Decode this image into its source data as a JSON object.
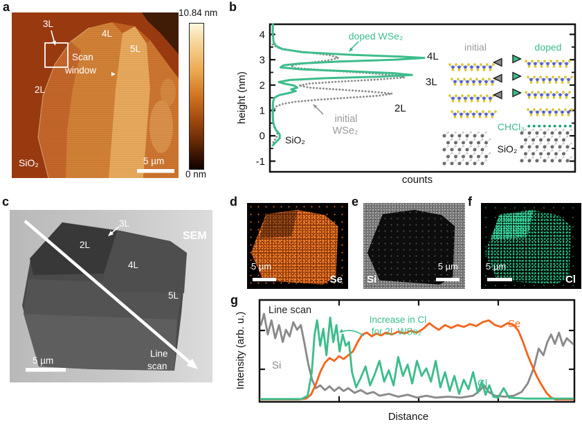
{
  "colors": {
    "teal": "#3dbd8c",
    "orange": "#f4661f",
    "gray": "#8a8a8a",
    "atom_yellow": "#ddc92f",
    "atom_blue": "#5663cf"
  },
  "panel_a": {
    "label": "a",
    "color_max": "10.84 nm",
    "color_min": "0 nm",
    "l3": "3L",
    "l4": "4L",
    "l5": "5L",
    "l2": "2L",
    "scan_line1": "Scan",
    "scan_line2": "window",
    "substrate": "SiO₂",
    "scalebar": "5 µm"
  },
  "panel_b": {
    "label": "b",
    "ylabel": "height (nm)",
    "xlabel": "counts",
    "doped_label": "doped WSe₂",
    "initial_label1": "initial",
    "initial_label2": "WSe₂",
    "peak4": "4L",
    "peak3": "3L",
    "peak2": "2L",
    "sio2": "SiO₂",
    "inset": {
      "initial": "initial",
      "doped": "doped",
      "chcl3": "CHCl₃",
      "sio2": "SiO₂"
    }
  },
  "panel_c": {
    "label": "c",
    "technique": "SEM",
    "l3": "3L",
    "l2": "2L",
    "l4": "4L",
    "l5": "5L",
    "line1": "Line",
    "line2": "scan",
    "scalebar": "5 µm"
  },
  "panel_d": {
    "label": "d",
    "scalebar": "5 µm",
    "element": "Se"
  },
  "panel_e": {
    "label": "e",
    "element": "Si",
    "scalebar": "5 µm"
  },
  "panel_f": {
    "label": "f",
    "scalebar": "5 µm",
    "element": "Cl"
  },
  "panel_g": {
    "label": "g",
    "title": "Line scan",
    "ylabel": "Intensity (arb. u.)",
    "xlabel": "Distance",
    "annotation1": "Increase in Cl",
    "annotation2": "for 2L WSe₂",
    "si": "Si",
    "se": "Se",
    "cl": "Cl"
  },
  "chart_data": [
    {
      "id": "height_histogram",
      "type": "line",
      "xlabel": "counts",
      "ylabel": "height (nm)",
      "x_axis_note": "counts axis unlabeled, values normalized 0-1",
      "ylim": [
        -1.45,
        4.4
      ],
      "yticks_major": [
        4,
        3,
        2,
        1,
        0,
        -1
      ],
      "yticks_minor": [
        3.5,
        2.5,
        1.5,
        0.5,
        -0.5
      ],
      "peak_annotations": [
        {
          "label": "4L",
          "height_nm": 3.1
        },
        {
          "label": "3L",
          "height_nm": 2.4
        },
        {
          "label": "2L",
          "height_nm": 1.6
        },
        {
          "label": "SiO₂",
          "height_nm": 0.0
        }
      ],
      "series": [
        {
          "name": "initial WSe₂",
          "color": "#8a8a8a",
          "style": "dotted",
          "points_height_counts": [
            [
              3.6,
              0.01
            ],
            [
              3.48,
              0.04
            ],
            [
              3.38,
              0.12
            ],
            [
              3.28,
              0.25
            ],
            [
              3.18,
              0.38
            ],
            [
              3.08,
              0.44
            ],
            [
              2.98,
              0.38
            ],
            [
              2.88,
              0.25
            ],
            [
              2.78,
              0.13
            ],
            [
              2.68,
              0.15
            ],
            [
              2.58,
              0.35
            ],
            [
              2.48,
              0.62
            ],
            [
              2.38,
              0.82
            ],
            [
              2.3,
              0.87
            ],
            [
              2.22,
              0.7
            ],
            [
              2.14,
              0.45
            ],
            [
              2.06,
              0.25
            ],
            [
              1.98,
              0.18
            ],
            [
              1.9,
              0.25
            ],
            [
              1.82,
              0.45
            ],
            [
              1.74,
              0.65
            ],
            [
              1.66,
              0.79
            ],
            [
              1.58,
              0.7
            ],
            [
              1.5,
              0.5
            ],
            [
              1.42,
              0.3
            ],
            [
              1.34,
              0.15
            ],
            [
              1.25,
              0.07
            ],
            [
              1.15,
              0.03
            ],
            [
              1.0,
              0.015
            ],
            [
              0.8,
              0.01
            ],
            [
              0.6,
              0.012
            ],
            [
              0.4,
              0.018
            ],
            [
              0.25,
              0.03
            ],
            [
              0.1,
              0.04
            ],
            [
              -0.05,
              0.035
            ],
            [
              -0.2,
              0.018
            ],
            [
              -0.35,
              0.006
            ]
          ]
        },
        {
          "name": "doped WSe₂",
          "color": "#3dbd8c",
          "style": "solid",
          "points_height_counts": [
            [
              4.4,
              0.01
            ],
            [
              4.0,
              0.01
            ],
            [
              3.7,
              0.015
            ],
            [
              3.55,
              0.03
            ],
            [
              3.42,
              0.07
            ],
            [
              3.3,
              0.2
            ],
            [
              3.2,
              0.5
            ],
            [
              3.12,
              0.85
            ],
            [
              3.07,
              1.0
            ],
            [
              3.0,
              0.8
            ],
            [
              2.93,
              0.45
            ],
            [
              2.85,
              0.18
            ],
            [
              2.78,
              0.08
            ],
            [
              2.7,
              0.06
            ],
            [
              2.62,
              0.2
            ],
            [
              2.55,
              0.5
            ],
            [
              2.47,
              0.8
            ],
            [
              2.4,
              0.92
            ],
            [
              2.33,
              0.7
            ],
            [
              2.27,
              0.35
            ],
            [
              2.2,
              0.12
            ],
            [
              2.12,
              0.05
            ],
            [
              2.05,
              0.09
            ],
            [
              1.98,
              0.15
            ],
            [
              1.9,
              0.17
            ],
            [
              1.83,
              0.13
            ],
            [
              1.76,
              0.16
            ],
            [
              1.68,
              0.11
            ],
            [
              1.6,
              0.05
            ],
            [
              1.5,
              0.02
            ],
            [
              1.35,
              0.012
            ],
            [
              1.1,
              0.01
            ],
            [
              0.8,
              0.01
            ],
            [
              0.55,
              0.012
            ],
            [
              0.35,
              0.02
            ],
            [
              0.2,
              0.035
            ],
            [
              0.05,
              0.055
            ],
            [
              -0.1,
              0.055
            ],
            [
              -0.25,
              0.03
            ],
            [
              -0.38,
              0.01
            ]
          ]
        }
      ]
    },
    {
      "id": "eds_line_scan",
      "type": "line",
      "title": "Line scan",
      "xlabel": "Distance",
      "ylabel": "Intensity (arb. u.)",
      "axis_note": "both axes unlabeled numerically, values normalized 0-1",
      "annotation": "Increase in Cl for 2L WSe₂",
      "series": [
        {
          "name": "Si",
          "color": "#8a8a8a",
          "points_xy": [
            [
              0.0,
              0.8
            ],
            [
              0.01,
              0.92
            ],
            [
              0.022,
              0.7
            ],
            [
              0.034,
              0.85
            ],
            [
              0.046,
              0.66
            ],
            [
              0.058,
              0.8
            ],
            [
              0.07,
              0.62
            ],
            [
              0.08,
              0.75
            ],
            [
              0.092,
              0.68
            ],
            [
              0.104,
              0.83
            ],
            [
              0.116,
              0.75
            ],
            [
              0.128,
              0.8
            ],
            [
              0.14,
              0.6
            ],
            [
              0.152,
              0.38
            ],
            [
              0.164,
              0.22
            ],
            [
              0.176,
              0.13
            ],
            [
              0.19,
              0.16
            ],
            [
              0.205,
              0.11
            ],
            [
              0.22,
              0.15
            ],
            [
              0.235,
              0.1
            ],
            [
              0.25,
              0.14
            ],
            [
              0.265,
              0.1
            ],
            [
              0.28,
              0.13
            ],
            [
              0.3,
              0.08
            ],
            [
              0.32,
              0.11
            ],
            [
              0.34,
              0.07
            ],
            [
              0.36,
              0.09
            ],
            [
              0.38,
              0.05
            ],
            [
              0.41,
              0.07
            ],
            [
              0.44,
              0.04
            ],
            [
              0.47,
              0.06
            ],
            [
              0.5,
              0.03
            ],
            [
              0.53,
              0.05
            ],
            [
              0.56,
              0.03
            ],
            [
              0.6,
              0.04
            ],
            [
              0.64,
              0.03
            ],
            [
              0.68,
              0.05
            ],
            [
              0.7,
              0.1
            ],
            [
              0.715,
              0.16
            ],
            [
              0.73,
              0.09
            ],
            [
              0.75,
              0.05
            ],
            [
              0.78,
              0.04
            ],
            [
              0.81,
              0.05
            ],
            [
              0.835,
              0.09
            ],
            [
              0.855,
              0.18
            ],
            [
              0.875,
              0.35
            ],
            [
              0.89,
              0.55
            ],
            [
              0.905,
              0.48
            ],
            [
              0.918,
              0.62
            ],
            [
              0.93,
              0.7
            ],
            [
              0.942,
              0.6
            ],
            [
              0.955,
              0.72
            ],
            [
              0.968,
              0.58
            ],
            [
              0.98,
              0.66
            ],
            [
              1.0,
              0.6
            ]
          ]
        },
        {
          "name": "Se",
          "color": "#f4661f",
          "points_xy": [
            [
              0.0,
              0.01
            ],
            [
              0.12,
              0.01
            ],
            [
              0.145,
              0.02
            ],
            [
              0.16,
              0.06
            ],
            [
              0.175,
              0.16
            ],
            [
              0.19,
              0.3
            ],
            [
              0.205,
              0.4
            ],
            [
              0.22,
              0.45
            ],
            [
              0.235,
              0.42
            ],
            [
              0.25,
              0.47
            ],
            [
              0.265,
              0.44
            ],
            [
              0.28,
              0.48
            ],
            [
              0.295,
              0.52
            ],
            [
              0.31,
              0.62
            ],
            [
              0.325,
              0.7
            ],
            [
              0.34,
              0.72
            ],
            [
              0.355,
              0.68
            ],
            [
              0.37,
              0.71
            ],
            [
              0.385,
              0.69
            ],
            [
              0.4,
              0.72
            ],
            [
              0.42,
              0.7
            ],
            [
              0.44,
              0.73
            ],
            [
              0.46,
              0.71
            ],
            [
              0.48,
              0.74
            ],
            [
              0.5,
              0.72
            ],
            [
              0.52,
              0.76
            ],
            [
              0.54,
              0.82
            ],
            [
              0.555,
              0.78
            ],
            [
              0.57,
              0.75
            ],
            [
              0.59,
              0.8
            ],
            [
              0.61,
              0.77
            ],
            [
              0.63,
              0.8
            ],
            [
              0.65,
              0.78
            ],
            [
              0.67,
              0.81
            ],
            [
              0.69,
              0.79
            ],
            [
              0.71,
              0.83
            ],
            [
              0.73,
              0.85
            ],
            [
              0.75,
              0.8
            ],
            [
              0.77,
              0.78
            ],
            [
              0.79,
              0.82
            ],
            [
              0.81,
              0.8
            ],
            [
              0.825,
              0.74
            ],
            [
              0.84,
              0.62
            ],
            [
              0.855,
              0.48
            ],
            [
              0.87,
              0.36
            ],
            [
              0.885,
              0.25
            ],
            [
              0.9,
              0.16
            ],
            [
              0.915,
              0.08
            ],
            [
              0.93,
              0.03
            ],
            [
              0.945,
              0.01
            ],
            [
              1.0,
              0.01
            ]
          ]
        },
        {
          "name": "Cl",
          "color": "#3dbd8c",
          "points_xy": [
            [
              0.0,
              0.015
            ],
            [
              0.13,
              0.015
            ],
            [
              0.15,
              0.05
            ],
            [
              0.163,
              0.3
            ],
            [
              0.172,
              0.7
            ],
            [
              0.18,
              0.85
            ],
            [
              0.19,
              0.58
            ],
            [
              0.2,
              0.76
            ],
            [
              0.21,
              0.48
            ],
            [
              0.222,
              0.88
            ],
            [
              0.232,
              0.62
            ],
            [
              0.242,
              0.8
            ],
            [
              0.252,
              0.52
            ],
            [
              0.262,
              0.7
            ],
            [
              0.272,
              0.58
            ],
            [
              0.282,
              0.62
            ],
            [
              0.292,
              0.3
            ],
            [
              0.305,
              0.14
            ],
            [
              0.32,
              0.24
            ],
            [
              0.335,
              0.36
            ],
            [
              0.35,
              0.16
            ],
            [
              0.365,
              0.28
            ],
            [
              0.38,
              0.42
            ],
            [
              0.395,
              0.2
            ],
            [
              0.41,
              0.32
            ],
            [
              0.425,
              0.16
            ],
            [
              0.44,
              0.46
            ],
            [
              0.455,
              0.26
            ],
            [
              0.47,
              0.38
            ],
            [
              0.485,
              0.18
            ],
            [
              0.5,
              0.42
            ],
            [
              0.515,
              0.26
            ],
            [
              0.53,
              0.34
            ],
            [
              0.545,
              0.2
            ],
            [
              0.56,
              0.42
            ],
            [
              0.575,
              0.14
            ],
            [
              0.59,
              0.3
            ],
            [
              0.605,
              0.1
            ],
            [
              0.62,
              0.26
            ],
            [
              0.635,
              0.07
            ],
            [
              0.65,
              0.22
            ],
            [
              0.665,
              0.12
            ],
            [
              0.68,
              0.3
            ],
            [
              0.695,
              0.08
            ],
            [
              0.708,
              0.2
            ],
            [
              0.72,
              0.06
            ],
            [
              0.732,
              0.16
            ],
            [
              0.745,
              0.04
            ],
            [
              0.76,
              0.03
            ],
            [
              0.778,
              0.13
            ],
            [
              0.795,
              0.03
            ],
            [
              0.85,
              0.02
            ],
            [
              1.0,
              0.02
            ]
          ]
        }
      ]
    }
  ]
}
